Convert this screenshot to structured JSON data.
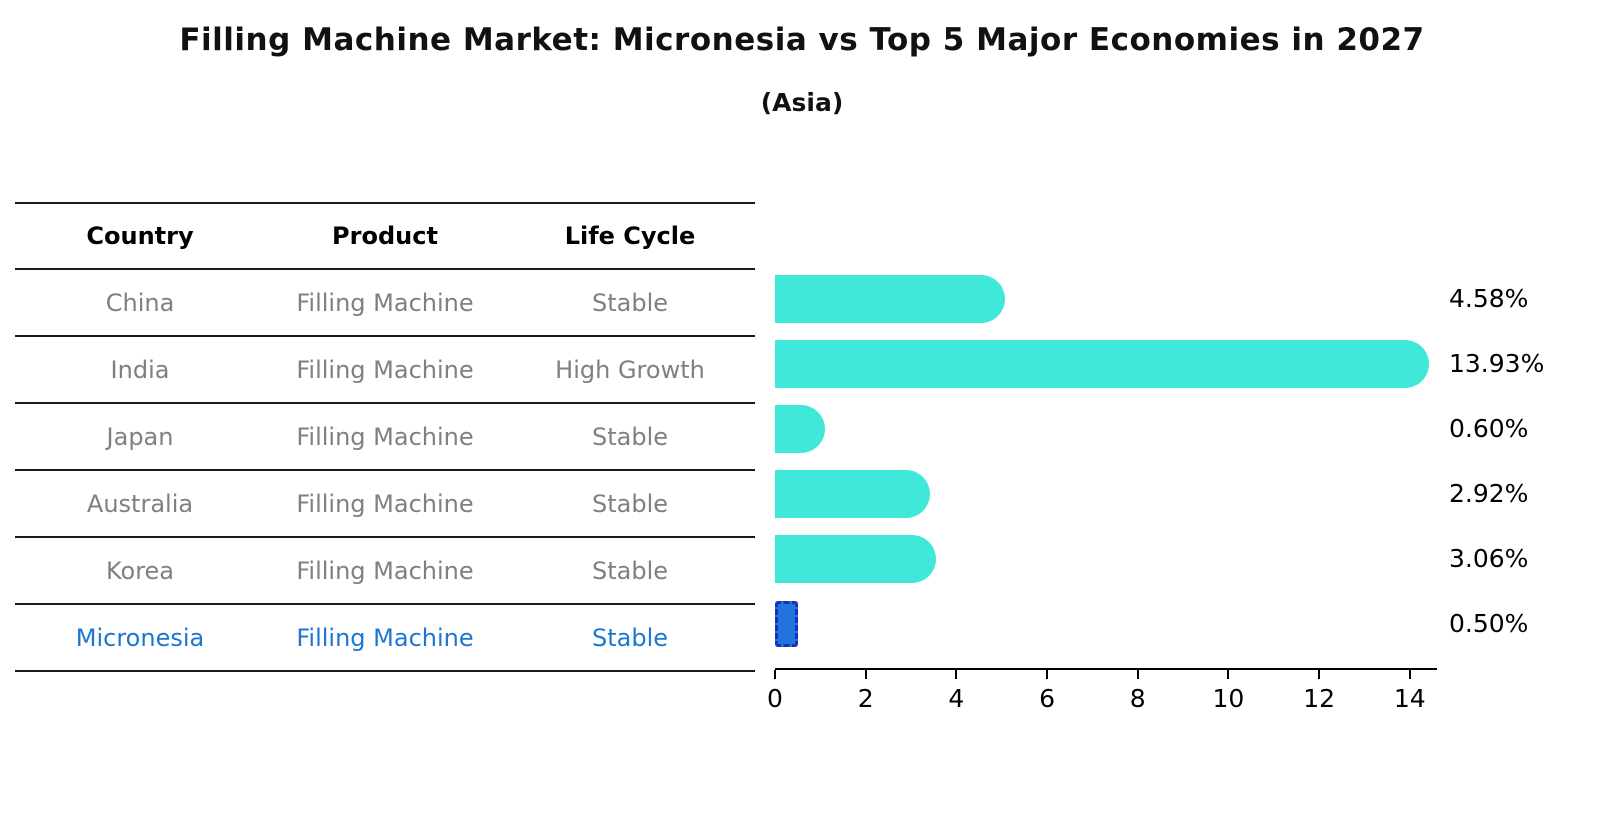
{
  "title": "Filling Machine Market: Micronesia vs Top 5 Major Economies in 2027",
  "subtitle": "(Asia)",
  "table": {
    "headers": [
      "Country",
      "Product",
      "Life Cycle"
    ]
  },
  "chart_data": {
    "type": "bar",
    "orientation": "horizontal",
    "title": "Filling Machine Market: Micronesia vs Top 5 Major Economies in 2027",
    "subtitle": "(Asia)",
    "rows": [
      {
        "country": "China",
        "product": "Filling Machine",
        "life_cycle": "Stable",
        "value": 4.58,
        "label": "4.58%",
        "highlight": false
      },
      {
        "country": "India",
        "product": "Filling Machine",
        "life_cycle": "High Growth",
        "value": 13.93,
        "label": "13.93%",
        "highlight": false
      },
      {
        "country": "Japan",
        "product": "Filling Machine",
        "life_cycle": "Stable",
        "value": 0.6,
        "label": "0.60%",
        "highlight": false
      },
      {
        "country": "Australia",
        "product": "Filling Machine",
        "life_cycle": "Stable",
        "value": 2.92,
        "label": "2.92%",
        "highlight": false
      },
      {
        "country": "Korea",
        "product": "Filling Machine",
        "life_cycle": "Stable",
        "value": 3.06,
        "label": "3.06%",
        "highlight": false
      },
      {
        "country": "Micronesia",
        "product": "Filling Machine",
        "life_cycle": "Stable",
        "value": 0.5,
        "label": "0.50%",
        "highlight": true
      }
    ],
    "x_ticks": [
      0,
      2,
      4,
      6,
      8,
      10,
      12,
      14
    ],
    "xlim": [
      0,
      14.6
    ],
    "bar_cap_units": 0.5,
    "grid": false,
    "legend": "none",
    "colors": {
      "bar": "#40E8D9",
      "highlight_bar": "#2373DE",
      "highlight_border": "#1634b8",
      "row_text": "#808080",
      "highlight_text": "#1d76d2"
    }
  }
}
